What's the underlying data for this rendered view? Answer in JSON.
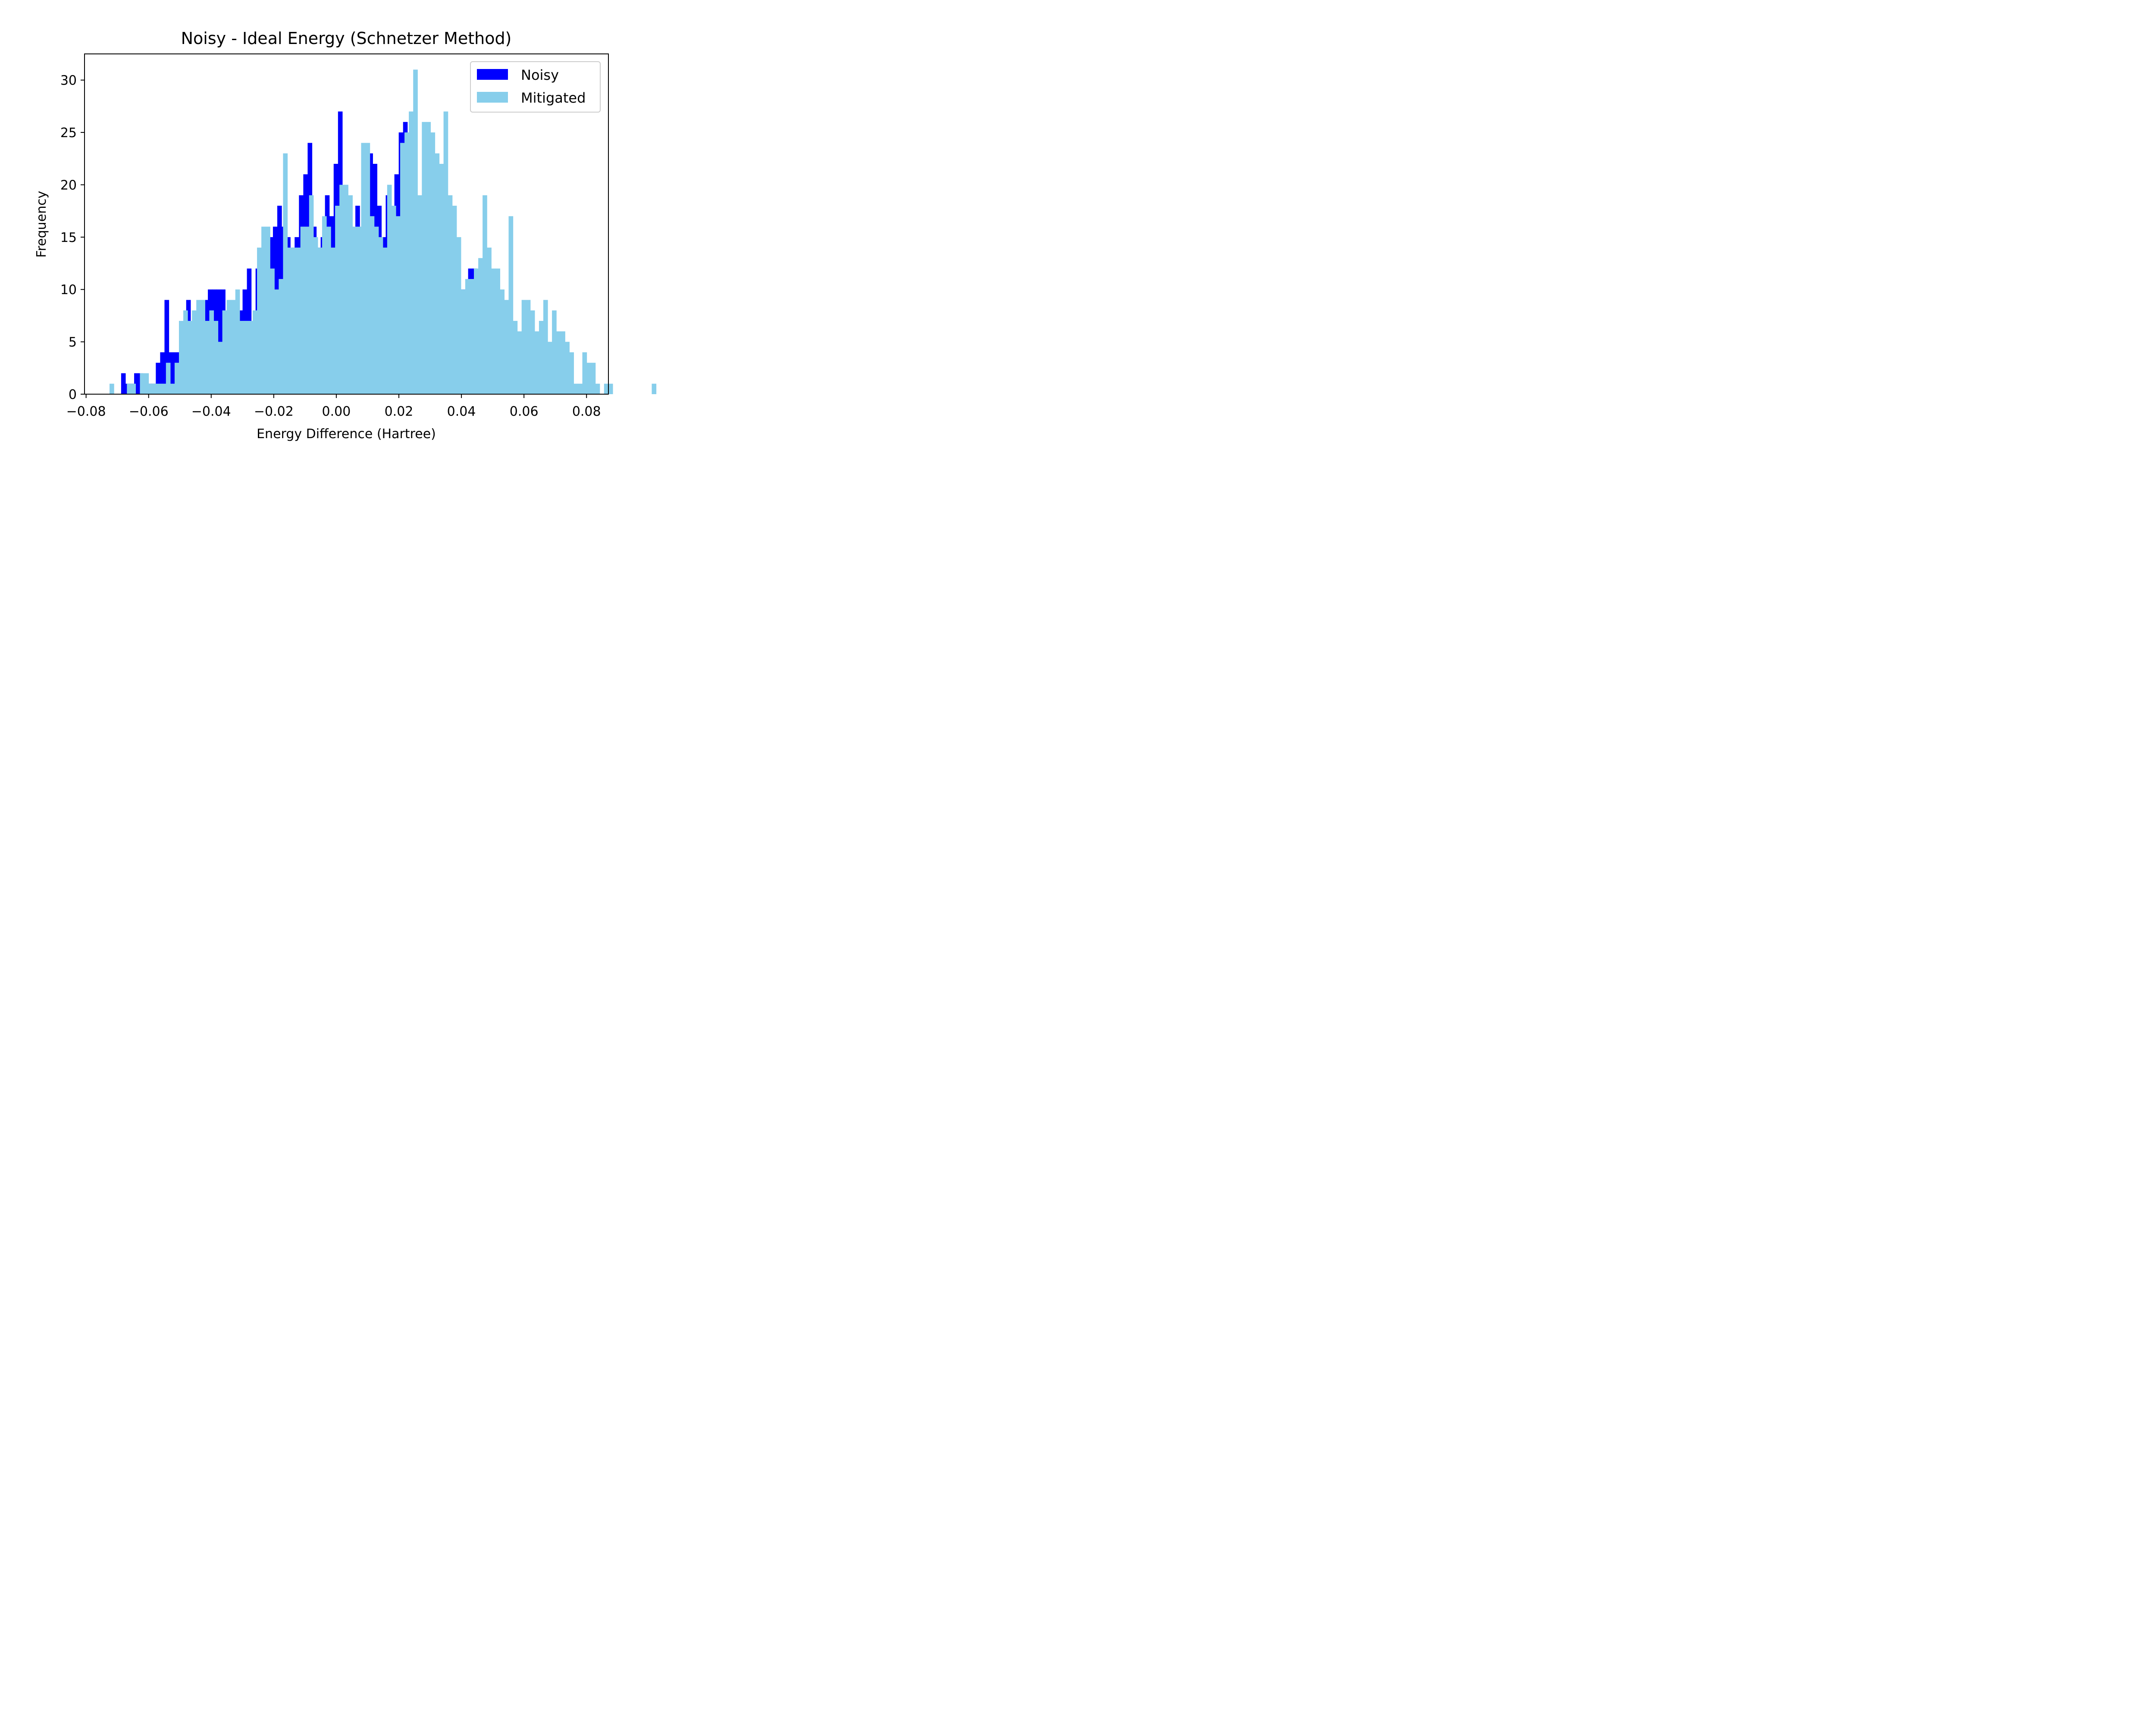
{
  "chart_data": {
    "type": "bar",
    "title": "Noisy - Ideal Energy (Schnetzer Method)",
    "xlabel": "Energy Difference (Hartree)",
    "ylabel": "Frequency",
    "xlim": [
      -0.0805,
      0.087
    ],
    "ylim": [
      0,
      32.5
    ],
    "xticks": [
      -0.08,
      -0.06,
      -0.04,
      -0.02,
      0.0,
      0.02,
      0.04,
      0.06,
      0.08
    ],
    "xtick_labels": [
      "−0.08",
      "−0.06",
      "−0.04",
      "−0.02",
      "0.00",
      "0.02",
      "0.04",
      "0.06",
      "0.08"
    ],
    "yticks": [
      0,
      5,
      10,
      15,
      20,
      25,
      30
    ],
    "ytick_labels": [
      "0",
      "5",
      "10",
      "15",
      "20",
      "25",
      "30"
    ],
    "grid": false,
    "legend_position": "top-right",
    "series": [
      {
        "name": "Noisy",
        "color": "#0000ff",
        "bin_start": -0.0688,
        "bin_width": 0.0013868,
        "values": [
          2,
          1,
          1,
          2,
          2,
          1,
          1,
          1,
          3,
          4,
          9,
          4,
          4,
          4,
          4,
          9,
          4,
          3,
          5,
          9,
          10,
          10,
          10,
          10,
          7,
          7,
          7,
          8,
          10,
          12,
          5,
          12,
          11,
          10,
          15,
          16,
          18,
          16,
          15,
          14,
          15,
          19,
          21,
          24,
          16,
          14,
          15,
          19,
          17,
          22,
          27,
          15,
          15,
          15,
          18,
          13,
          17,
          23,
          22,
          18,
          15,
          19,
          15,
          21,
          25,
          26,
          20,
          24,
          18,
          17,
          20,
          19,
          18,
          14,
          16,
          13,
          13,
          10,
          10,
          10,
          12,
          12,
          10,
          8,
          8,
          7,
          6,
          6,
          5,
          4,
          4,
          3,
          4,
          4,
          3,
          3,
          3,
          4,
          2,
          1,
          2,
          1,
          1,
          1
        ]
      },
      {
        "name": "Mitigated",
        "color": "#87ceeb",
        "bin_start": -0.0725,
        "bin_width": 0.0013868,
        "values": [
          1,
          0,
          0,
          0,
          1,
          1,
          0,
          2,
          2,
          1,
          1,
          1,
          1,
          3,
          1,
          3,
          7,
          8,
          7,
          8,
          9,
          9,
          7,
          8,
          7,
          5,
          8,
          9,
          9,
          10,
          7,
          7,
          7,
          8,
          14,
          16,
          16,
          12,
          10,
          11,
          23,
          14,
          14,
          14,
          16,
          16,
          19,
          15,
          14,
          17,
          16,
          14,
          18,
          20,
          20,
          19,
          16,
          16,
          24,
          24,
          17,
          16,
          15,
          14,
          20,
          18,
          17,
          24,
          25,
          27,
          31,
          19,
          26,
          26,
          25,
          23,
          22,
          27,
          19,
          18,
          15,
          10,
          11,
          11,
          12,
          13,
          19,
          14,
          12,
          12,
          10,
          9,
          17,
          7,
          6,
          9,
          9,
          8,
          6,
          7,
          9,
          5,
          8,
          6,
          6,
          5,
          4,
          1,
          1,
          4,
          3,
          3,
          1,
          0,
          1,
          1,
          0,
          0,
          0,
          0,
          0,
          0,
          0,
          0,
          0,
          1
        ]
      }
    ]
  }
}
